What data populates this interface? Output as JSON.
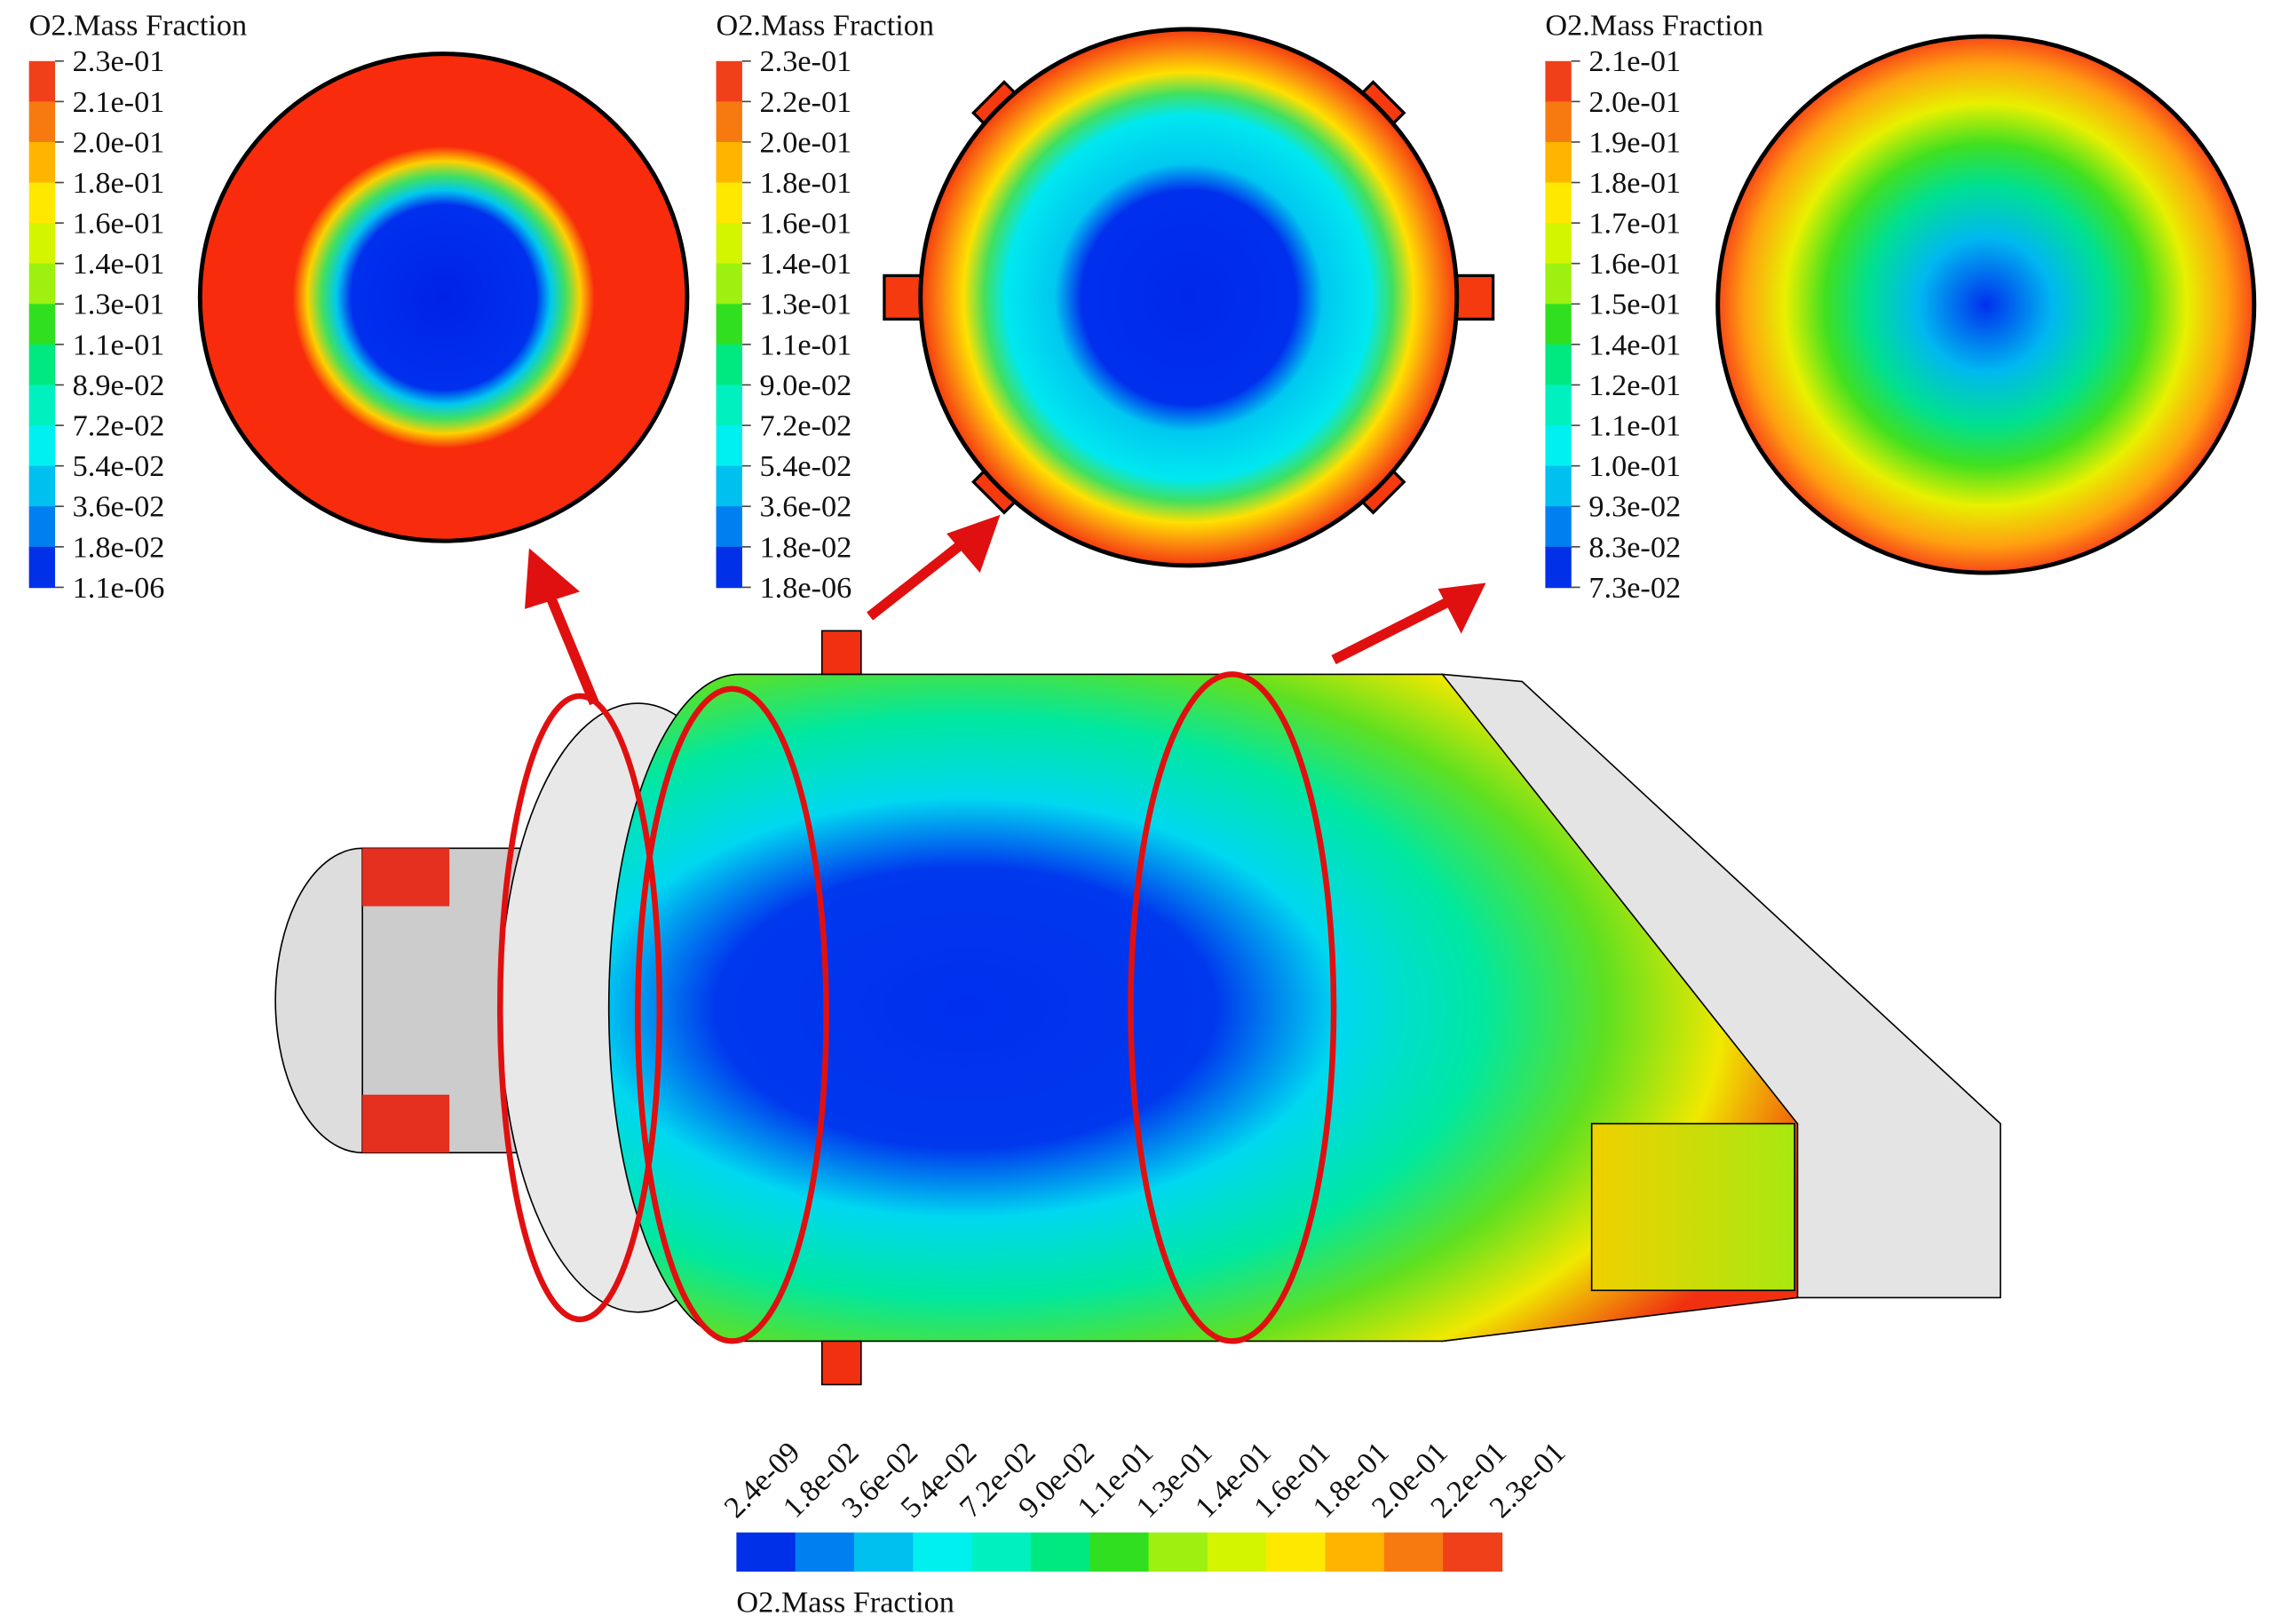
{
  "legends": [
    {
      "title": "O2.Mass Fraction",
      "labels": [
        "2.3e-01",
        "2.1e-01",
        "2.0e-01",
        "1.8e-01",
        "1.6e-01",
        "1.4e-01",
        "1.3e-01",
        "1.1e-01",
        "8.9e-02",
        "7.2e-02",
        "5.4e-02",
        "3.6e-02",
        "1.8e-02",
        "1.1e-06"
      ]
    },
    {
      "title": "O2.Mass Fraction",
      "labels": [
        "2.3e-01",
        "2.2e-01",
        "2.0e-01",
        "1.8e-01",
        "1.6e-01",
        "1.4e-01",
        "1.3e-01",
        "1.1e-01",
        "9.0e-02",
        "7.2e-02",
        "5.4e-02",
        "3.6e-02",
        "1.8e-02",
        "1.8e-06"
      ]
    },
    {
      "title": "O2.Mass Fraction",
      "labels": [
        "2.1e-01",
        "2.0e-01",
        "1.9e-01",
        "1.8e-01",
        "1.7e-01",
        "1.6e-01",
        "1.5e-01",
        "1.4e-01",
        "1.2e-01",
        "1.1e-01",
        "1.0e-01",
        "9.3e-02",
        "8.3e-02",
        "7.3e-02"
      ]
    }
  ],
  "bottom_legend": {
    "title": "O2.Mass Fraction",
    "labels": [
      "2.4e-09",
      "1.8e-02",
      "3.6e-02",
      "5.4e-02",
      "7.2e-02",
      "9.0e-02",
      "1.1e-01",
      "1.3e-01",
      "1.4e-01",
      "1.6e-01",
      "1.8e-01",
      "2.0e-01",
      "2.2e-01",
      "2.3e-01"
    ]
  }
}
